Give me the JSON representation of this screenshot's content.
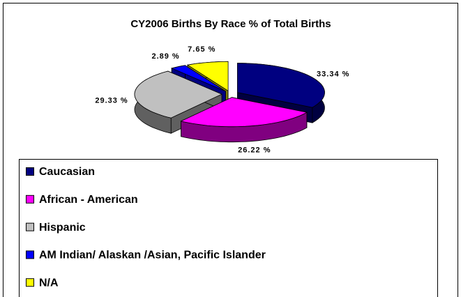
{
  "chart_data": {
    "type": "pie",
    "title": "CY2006 Births By Race % of Total Births",
    "categories": [
      "Caucasian",
      "African - American",
      "Hispanic",
      "AM Indian/ Alaskan /Asian, Pacific Islander",
      "N/A"
    ],
    "values": [
      33.34,
      26.22,
      29.33,
      2.89,
      7.65
    ],
    "value_labels": [
      "33.34 %",
      "26.22 %",
      "29.33 %",
      "2.89 %",
      "7.65 %"
    ],
    "colors": [
      "#000080",
      "#ff00ff",
      "#c0c0c0",
      "#0000ff",
      "#ffff00"
    ],
    "legend": "bottom"
  }
}
